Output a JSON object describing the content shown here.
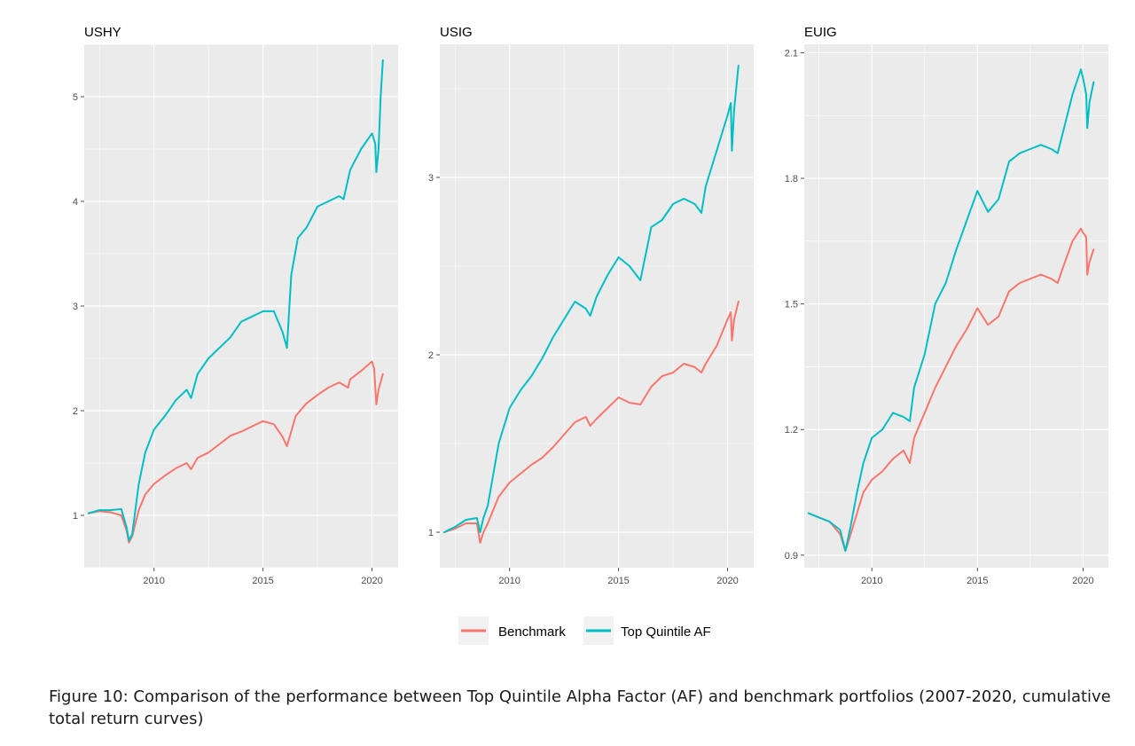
{
  "caption": "Figure 10:   Comparison of the performance between Top Quintile Alpha Factor (AF) and benchmark portfolios (2007-2020, cumulative total return curves)",
  "chart_data": [
    {
      "type": "line",
      "title": "USHY",
      "xlabel": "",
      "ylabel": "",
      "xlim": [
        2006.8,
        2021.2
      ],
      "ylim": [
        0.5,
        5.5
      ],
      "x_ticks": [
        2010,
        2015,
        2020
      ],
      "y_ticks": [
        1,
        2,
        3,
        4,
        5
      ],
      "grid": true,
      "series": [
        {
          "name": "Benchmark",
          "color": "#F8766D",
          "x": [
            2007.0,
            2007.5,
            2008.0,
            2008.5,
            2008.75,
            2008.85,
            2009.0,
            2009.3,
            2009.6,
            2010.0,
            2010.5,
            2011.0,
            2011.5,
            2011.7,
            2012.0,
            2012.5,
            2013.0,
            2013.5,
            2014.0,
            2014.5,
            2015.0,
            2015.5,
            2015.9,
            2016.1,
            2016.5,
            2017.0,
            2017.5,
            2018.0,
            2018.5,
            2018.9,
            2019.0,
            2019.5,
            2020.0,
            2020.1,
            2020.2,
            2020.3,
            2020.5
          ],
          "y": [
            1.02,
            1.04,
            1.03,
            1.0,
            0.85,
            0.74,
            0.8,
            1.05,
            1.2,
            1.3,
            1.38,
            1.45,
            1.5,
            1.44,
            1.55,
            1.6,
            1.68,
            1.76,
            1.8,
            1.85,
            1.9,
            1.87,
            1.75,
            1.66,
            1.95,
            2.07,
            2.15,
            2.22,
            2.27,
            2.22,
            2.3,
            2.38,
            2.47,
            2.4,
            2.06,
            2.2,
            2.35
          ]
        },
        {
          "name": "Top Quintile AF",
          "color": "#00BFC4",
          "x": [
            2007.0,
            2007.5,
            2008.0,
            2008.5,
            2008.75,
            2008.85,
            2009.0,
            2009.3,
            2009.6,
            2010.0,
            2010.5,
            2011.0,
            2011.5,
            2011.7,
            2012.0,
            2012.5,
            2013.0,
            2013.5,
            2014.0,
            2014.5,
            2015.0,
            2015.5,
            2015.9,
            2016.1,
            2016.3,
            2016.6,
            2017.0,
            2017.5,
            2018.0,
            2018.5,
            2018.7,
            2019.0,
            2019.5,
            2020.0,
            2020.15,
            2020.2,
            2020.3,
            2020.4,
            2020.5
          ],
          "y": [
            1.02,
            1.05,
            1.05,
            1.06,
            0.88,
            0.76,
            0.82,
            1.3,
            1.6,
            1.82,
            1.95,
            2.1,
            2.2,
            2.12,
            2.35,
            2.5,
            2.6,
            2.7,
            2.85,
            2.9,
            2.95,
            2.95,
            2.75,
            2.6,
            3.3,
            3.65,
            3.75,
            3.95,
            4.0,
            4.05,
            4.02,
            4.3,
            4.5,
            4.65,
            4.55,
            4.28,
            4.5,
            5.0,
            5.35
          ]
        }
      ]
    },
    {
      "type": "line",
      "title": "USIG",
      "xlabel": "",
      "ylabel": "",
      "xlim": [
        2006.8,
        2021.2
      ],
      "ylim": [
        0.8,
        3.75
      ],
      "x_ticks": [
        2010,
        2015,
        2020
      ],
      "y_ticks": [
        1,
        2,
        3
      ],
      "grid": true,
      "series": [
        {
          "name": "Benchmark",
          "color": "#F8766D",
          "x": [
            2007.0,
            2007.5,
            2008.0,
            2008.5,
            2008.65,
            2008.8,
            2009.0,
            2009.5,
            2010.0,
            2010.5,
            2011.0,
            2011.5,
            2012.0,
            2012.5,
            2013.0,
            2013.5,
            2013.7,
            2014.0,
            2014.5,
            2015.0,
            2015.5,
            2016.0,
            2016.5,
            2017.0,
            2017.5,
            2018.0,
            2018.5,
            2018.8,
            2019.0,
            2019.5,
            2020.0,
            2020.15,
            2020.2,
            2020.3,
            2020.5
          ],
          "y": [
            1.0,
            1.02,
            1.05,
            1.05,
            0.94,
            1.0,
            1.05,
            1.2,
            1.28,
            1.33,
            1.38,
            1.42,
            1.48,
            1.55,
            1.62,
            1.65,
            1.6,
            1.64,
            1.7,
            1.76,
            1.73,
            1.72,
            1.82,
            1.88,
            1.9,
            1.95,
            1.93,
            1.9,
            1.95,
            2.05,
            2.2,
            2.24,
            2.08,
            2.2,
            2.3
          ]
        },
        {
          "name": "Top Quintile AF",
          "color": "#00BFC4",
          "x": [
            2007.0,
            2007.5,
            2008.0,
            2008.5,
            2008.65,
            2008.8,
            2009.0,
            2009.5,
            2010.0,
            2010.5,
            2011.0,
            2011.5,
            2012.0,
            2012.5,
            2013.0,
            2013.5,
            2013.7,
            2014.0,
            2014.5,
            2015.0,
            2015.5,
            2016.0,
            2016.5,
            2017.0,
            2017.5,
            2018.0,
            2018.5,
            2018.8,
            2019.0,
            2019.5,
            2020.0,
            2020.15,
            2020.2,
            2020.3,
            2020.5
          ],
          "y": [
            1.0,
            1.03,
            1.07,
            1.08,
            1.0,
            1.08,
            1.15,
            1.5,
            1.7,
            1.8,
            1.88,
            1.98,
            2.1,
            2.2,
            2.3,
            2.26,
            2.22,
            2.33,
            2.45,
            2.55,
            2.5,
            2.42,
            2.72,
            2.76,
            2.85,
            2.88,
            2.85,
            2.8,
            2.95,
            3.15,
            3.35,
            3.42,
            3.15,
            3.38,
            3.63
          ]
        }
      ]
    },
    {
      "type": "line",
      "title": "EUIG",
      "xlabel": "",
      "ylabel": "",
      "xlim": [
        2006.8,
        2021.2
      ],
      "ylim": [
        0.87,
        2.12
      ],
      "x_ticks": [
        2010,
        2015,
        2020
      ],
      "y_ticks": [
        0.9,
        1.2,
        1.5,
        1.8,
        2.1
      ],
      "grid": true,
      "series": [
        {
          "name": "Benchmark",
          "color": "#F8766D",
          "x": [
            2007.0,
            2007.5,
            2008.0,
            2008.5,
            2008.75,
            2009.0,
            2009.3,
            2009.6,
            2010.0,
            2010.5,
            2011.0,
            2011.5,
            2011.8,
            2012.0,
            2012.5,
            2013.0,
            2013.5,
            2014.0,
            2014.5,
            2015.0,
            2015.5,
            2016.0,
            2016.5,
            2017.0,
            2017.5,
            2018.0,
            2018.5,
            2018.8,
            2019.0,
            2019.5,
            2019.9,
            2020.0,
            2020.15,
            2020.2,
            2020.3,
            2020.5
          ],
          "y": [
            1.0,
            0.99,
            0.98,
            0.95,
            0.91,
            0.95,
            1.0,
            1.05,
            1.08,
            1.1,
            1.13,
            1.15,
            1.12,
            1.18,
            1.24,
            1.3,
            1.35,
            1.4,
            1.44,
            1.49,
            1.45,
            1.47,
            1.53,
            1.55,
            1.56,
            1.57,
            1.56,
            1.55,
            1.58,
            1.65,
            1.68,
            1.67,
            1.66,
            1.57,
            1.6,
            1.63
          ]
        },
        {
          "name": "Top Quintile AF",
          "color": "#00BFC4",
          "x": [
            2007.0,
            2007.5,
            2008.0,
            2008.5,
            2008.75,
            2009.0,
            2009.3,
            2009.6,
            2010.0,
            2010.5,
            2011.0,
            2011.5,
            2011.8,
            2012.0,
            2012.5,
            2013.0,
            2013.5,
            2014.0,
            2014.5,
            2015.0,
            2015.5,
            2016.0,
            2016.5,
            2017.0,
            2017.5,
            2018.0,
            2018.5,
            2018.8,
            2019.0,
            2019.5,
            2019.9,
            2020.0,
            2020.15,
            2020.2,
            2020.3,
            2020.5
          ],
          "y": [
            1.0,
            0.99,
            0.98,
            0.96,
            0.91,
            0.97,
            1.05,
            1.12,
            1.18,
            1.2,
            1.24,
            1.23,
            1.22,
            1.3,
            1.38,
            1.5,
            1.55,
            1.63,
            1.7,
            1.77,
            1.72,
            1.75,
            1.84,
            1.86,
            1.87,
            1.88,
            1.87,
            1.86,
            1.9,
            2.0,
            2.06,
            2.04,
            2.0,
            1.92,
            1.98,
            2.03
          ]
        }
      ]
    }
  ],
  "legend": {
    "placement": "bottom",
    "items": [
      {
        "label": "Benchmark",
        "color": "#F8766D"
      },
      {
        "label": "Top Quintile AF",
        "color": "#00BFC4"
      }
    ]
  },
  "style": {
    "panel_background": "#EBEBEB",
    "grid_color": "#FFFFFF",
    "tick_color": "#4D4D4D"
  }
}
